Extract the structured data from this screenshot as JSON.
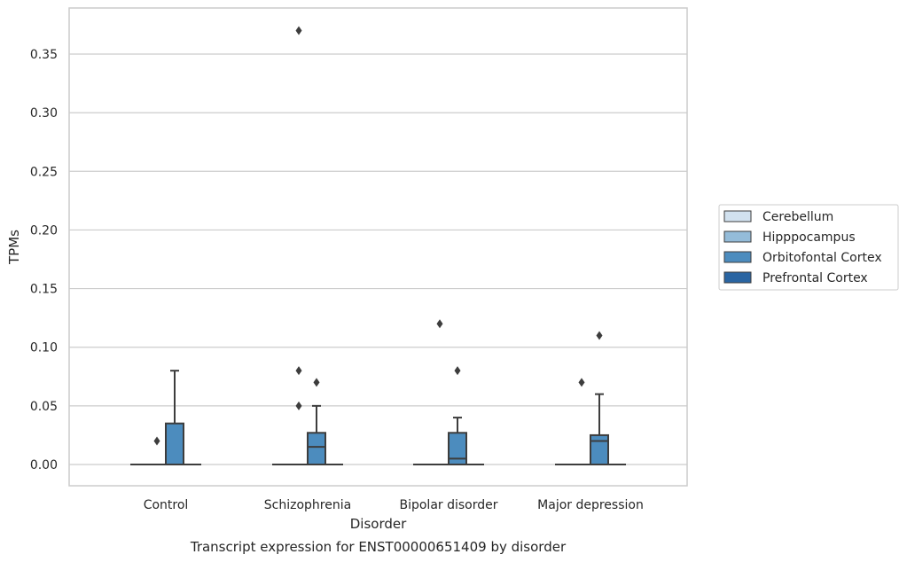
{
  "chart_data": {
    "type": "box",
    "caption": "Transcript expression for ENST00000651409 by disorder",
    "xlabel": "Disorder",
    "ylabel": "TPMs",
    "ylim": [
      -0.018,
      0.388
    ],
    "yticks": [
      0.0,
      0.05,
      0.1,
      0.15,
      0.2,
      0.25,
      0.3,
      0.35
    ],
    "ytick_labels": [
      "0.00",
      "0.05",
      "0.10",
      "0.15",
      "0.20",
      "0.25",
      "0.30",
      "0.35"
    ],
    "grid": true,
    "legend_position": "right",
    "categories": [
      "Control",
      "Schizophrenia",
      "Bipolar disorder",
      "Major depression"
    ],
    "series": [
      {
        "name": "Cerebellum",
        "color": "#d1e1ef",
        "boxes": [
          {
            "q1": 0,
            "median": 0,
            "q3": 0,
            "whisker_low": 0,
            "whisker_high": 0,
            "outliers": []
          },
          {
            "q1": 0,
            "median": 0,
            "q3": 0,
            "whisker_low": 0,
            "whisker_high": 0,
            "outliers": []
          },
          {
            "q1": 0,
            "median": 0,
            "q3": 0,
            "whisker_low": 0,
            "whisker_high": 0,
            "outliers": []
          },
          {
            "q1": 0,
            "median": 0,
            "q3": 0,
            "whisker_low": 0,
            "whisker_high": 0,
            "outliers": []
          }
        ]
      },
      {
        "name": "Hipppocampus",
        "color": "#94bcd9",
        "boxes": [
          {
            "q1": 0,
            "median": 0,
            "q3": 0,
            "whisker_low": 0,
            "whisker_high": 0,
            "outliers": [
              0.02
            ]
          },
          {
            "q1": 0,
            "median": 0,
            "q3": 0,
            "whisker_low": 0,
            "whisker_high": 0,
            "outliers": [
              0.05,
              0.08,
              0.37
            ]
          },
          {
            "q1": 0,
            "median": 0,
            "q3": 0,
            "whisker_low": 0,
            "whisker_high": 0,
            "outliers": [
              0.12
            ]
          },
          {
            "q1": 0,
            "median": 0,
            "q3": 0,
            "whisker_low": 0,
            "whisker_high": 0,
            "outliers": [
              0.07
            ]
          }
        ]
      },
      {
        "name": "Orbitofontal Cortex",
        "color": "#4c8cbe",
        "boxes": [
          {
            "q1": 0,
            "median": 0,
            "q3": 0.035,
            "whisker_low": 0,
            "whisker_high": 0.08,
            "outliers": []
          },
          {
            "q1": 0,
            "median": 0.015,
            "q3": 0.027,
            "whisker_low": 0,
            "whisker_high": 0.05,
            "outliers": [
              0.07
            ]
          },
          {
            "q1": 0,
            "median": 0.005,
            "q3": 0.027,
            "whisker_low": 0,
            "whisker_high": 0.04,
            "outliers": [
              0.08
            ]
          },
          {
            "q1": 0,
            "median": 0.02,
            "q3": 0.025,
            "whisker_low": 0,
            "whisker_high": 0.06,
            "outliers": [
              0.11
            ]
          }
        ]
      },
      {
        "name": "Prefrontal Cortex",
        "color": "#2a65a2",
        "boxes": [
          {
            "q1": 0,
            "median": 0,
            "q3": 0,
            "whisker_low": 0,
            "whisker_high": 0,
            "outliers": []
          },
          {
            "q1": 0,
            "median": 0,
            "q3": 0,
            "whisker_low": 0,
            "whisker_high": 0,
            "outliers": []
          },
          {
            "q1": 0,
            "median": 0,
            "q3": 0,
            "whisker_low": 0,
            "whisker_high": 0,
            "outliers": []
          },
          {
            "q1": 0,
            "median": 0,
            "q3": 0,
            "whisker_low": 0,
            "whisker_high": 0,
            "outliers": []
          }
        ]
      }
    ]
  }
}
